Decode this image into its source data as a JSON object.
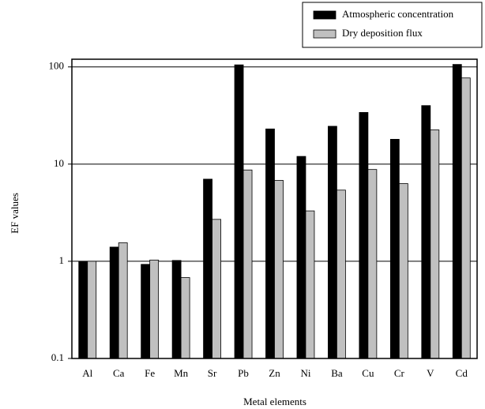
{
  "chart_data": {
    "type": "bar",
    "x_label": "Metal elements",
    "y_label": "EF values",
    "categories": [
      "Al",
      "Ca",
      "Fe",
      "Mn",
      "Sr",
      "Pb",
      "Zn",
      "Ni",
      "Ba",
      "Cu",
      "Cr",
      "V",
      "Cd"
    ],
    "series": [
      {
        "name": "Atmospheric concentration",
        "color": "#000000",
        "values": [
          1.0,
          1.4,
          0.93,
          1.02,
          7.0,
          105,
          23,
          12,
          24.5,
          34,
          18,
          40,
          106
        ]
      },
      {
        "name": "Dry deposition flux",
        "color": "#c0c0c0",
        "values": [
          1.0,
          1.55,
          1.03,
          0.68,
          2.7,
          8.7,
          6.8,
          3.3,
          5.4,
          8.8,
          6.3,
          22.5,
          77
        ]
      }
    ],
    "log_y": true,
    "ylim": [
      0.1,
      120
    ],
    "yticks": [
      0.1,
      1,
      10,
      100
    ],
    "grid": true,
    "legend": "top-right"
  }
}
